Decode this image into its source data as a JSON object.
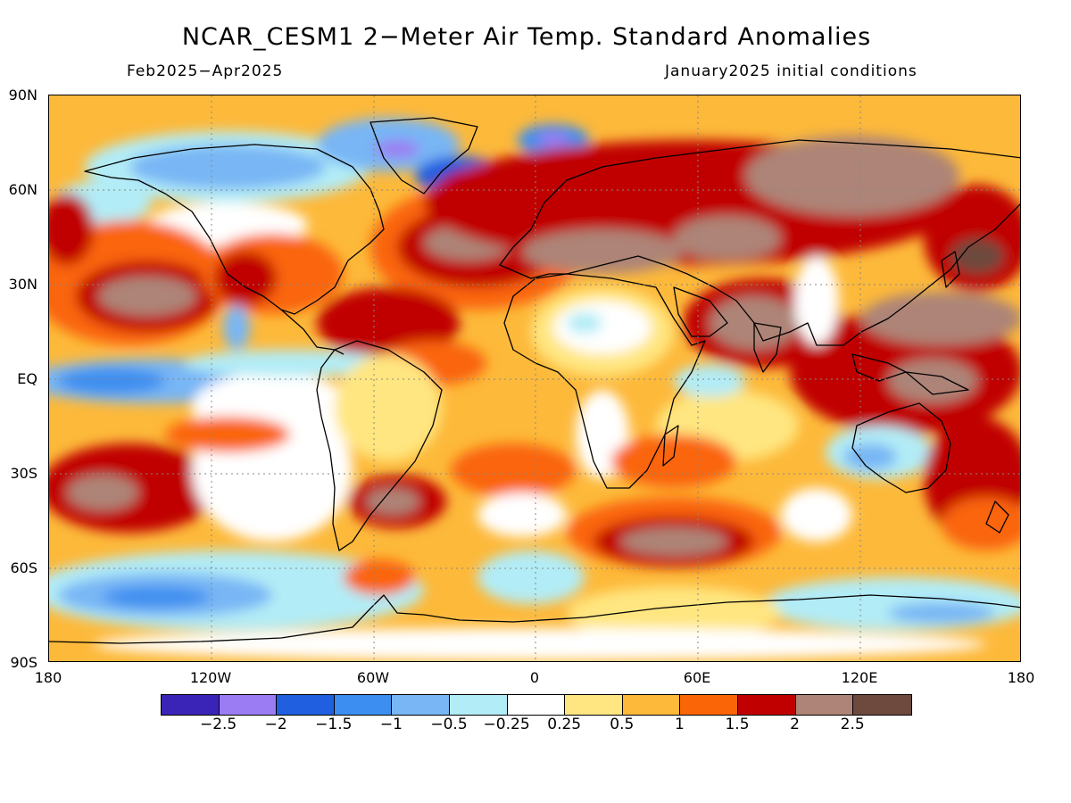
{
  "title": "NCAR_CESM1 2−Meter Air Temp. Standard Anomalies",
  "subtitle_left": "Feb2025−Apr2025",
  "subtitle_right": "January2025 initial conditions",
  "lat_labels": [
    "90N",
    "60N",
    "30N",
    "EQ",
    "30S",
    "60S",
    "90S"
  ],
  "lon_labels": [
    "180",
    "120W",
    "60W",
    "0",
    "60E",
    "120E",
    "180"
  ],
  "colorbar": {
    "colors": [
      "#3a24b8",
      "#9b7cf2",
      "#1f5fe0",
      "#3c8ef0",
      "#78b6f5",
      "#b2ecf6",
      "#ffffff",
      "#ffe680",
      "#fdb93a",
      "#fa6508",
      "#c00000",
      "#ad8477",
      "#6e4a3e"
    ],
    "labels": [
      "−2.5",
      "−2",
      "−1.5",
      "−1",
      "−0.5",
      "−0.25",
      "0.25",
      "0.5",
      "1",
      "1.5",
      "2",
      "2.5"
    ]
  }
}
